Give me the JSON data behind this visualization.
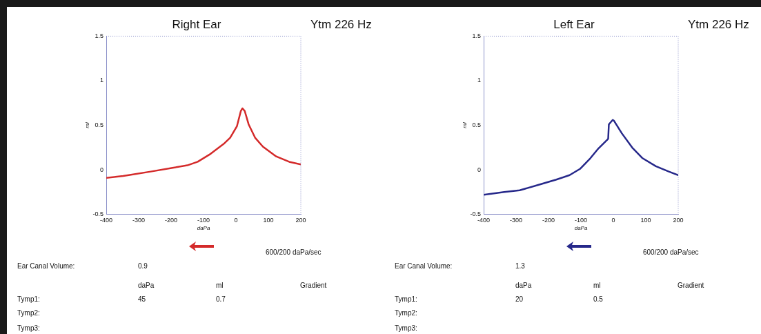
{
  "chart_data": [
    {
      "type": "line",
      "title": "Right Ear",
      "subtitle": "Ytm 226 Hz",
      "xlabel": "daPa",
      "ylabel": "ml",
      "xlim": [
        -400,
        200
      ],
      "ylim": [
        -0.5,
        1.5
      ],
      "xticks": [
        -400,
        -300,
        -200,
        -100,
        0,
        100,
        200
      ],
      "yticks": [
        -0.5,
        0,
        0.5,
        1,
        1.5
      ],
      "grid": false,
      "legend": false,
      "marker": "none",
      "series": [
        {
          "color": "#d42a2a",
          "x": [
            -400,
            -348,
            -263,
            -199,
            -150,
            -118,
            -78,
            -38,
            -18,
            3,
            15,
            20,
            27,
            39,
            59,
            83,
            124,
            164,
            200
          ],
          "values": [
            -0.09,
            -0.07,
            -0.02,
            0.02,
            0.05,
            0.09,
            0.18,
            0.29,
            0.36,
            0.49,
            0.66,
            0.69,
            0.66,
            0.51,
            0.36,
            0.26,
            0.15,
            0.09,
            0.06
          ]
        }
      ],
      "annotations": [
        "600/200 daPa/sec",
        "Ear Canal Volume:",
        "0.9",
        "daPa",
        "ml",
        "Gradient",
        "Tymp1:",
        "45",
        "0.7",
        "Tymp2:",
        "Tymp3:"
      ]
    },
    {
      "type": "line",
      "title": "Left Ear",
      "subtitle": "Ytm 226 Hz",
      "xlabel": "daPa",
      "ylabel": "ml",
      "xlim": [
        -400,
        200
      ],
      "ylim": [
        -0.5,
        1.5
      ],
      "xticks": [
        -400,
        -300,
        -200,
        -100,
        0,
        100,
        200
      ],
      "yticks": [
        -0.5,
        0,
        0.5,
        1,
        1.5
      ],
      "grid": false,
      "legend": false,
      "marker": "none",
      "series": [
        {
          "color": "#26288a",
          "x": [
            -400,
            -337,
            -289,
            -232,
            -176,
            -135,
            -103,
            -71,
            -46,
            -18,
            -16,
            -14,
            -2,
            2,
            26,
            58,
            90,
            131,
            171,
            200
          ],
          "values": [
            -0.28,
            -0.25,
            -0.23,
            -0.17,
            -0.11,
            -0.06,
            0.01,
            0.13,
            0.24,
            0.34,
            0.35,
            0.51,
            0.56,
            0.55,
            0.41,
            0.25,
            0.13,
            0.04,
            -0.02,
            -0.06
          ]
        }
      ],
      "annotations": [
        "600/200 daPa/sec",
        "Ear Canal Volume:",
        "1.3",
        "daPa",
        "ml",
        "Gradient",
        "Tymp1:",
        "20",
        "0.5",
        "Tymp2:",
        "Tymp3:"
      ]
    }
  ]
}
